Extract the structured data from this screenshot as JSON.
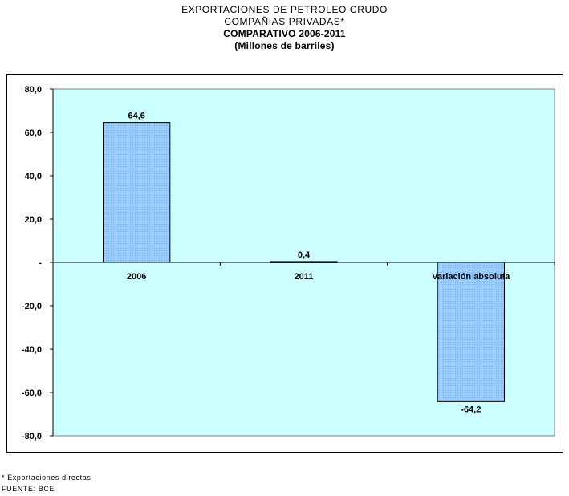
{
  "header": {
    "line1": "EXPORTACIONES DE PETROLEO CRUDO",
    "line2": "COMPAÑIAS PRIVADAS*",
    "line3": "COMPARATIVO 2006-2011",
    "line4": "(Millones de barriles)"
  },
  "chart_data": {
    "type": "bar",
    "categories": [
      "2006",
      "2011",
      "Variación absoluta"
    ],
    "values": [
      64.6,
      0.4,
      -64.2
    ],
    "data_labels": [
      "64,6",
      "0,4",
      "-64,2"
    ],
    "ylim": [
      -80,
      80
    ],
    "yticks": [
      80,
      60,
      40,
      20,
      0,
      -20,
      -40,
      -60,
      -80
    ],
    "ytick_labels": [
      "80,0",
      "60,0",
      "40,0",
      "20,0",
      "-",
      "-20,0",
      "-40,0",
      "-60,0",
      "-80,0"
    ],
    "grid": false,
    "plot_background": "#ccffff",
    "bar_color": "#99ccff",
    "bar_edge_color": "#000000"
  },
  "footnotes": {
    "note": "* Exportaciones directas",
    "source": "FUENTE: BCE"
  }
}
